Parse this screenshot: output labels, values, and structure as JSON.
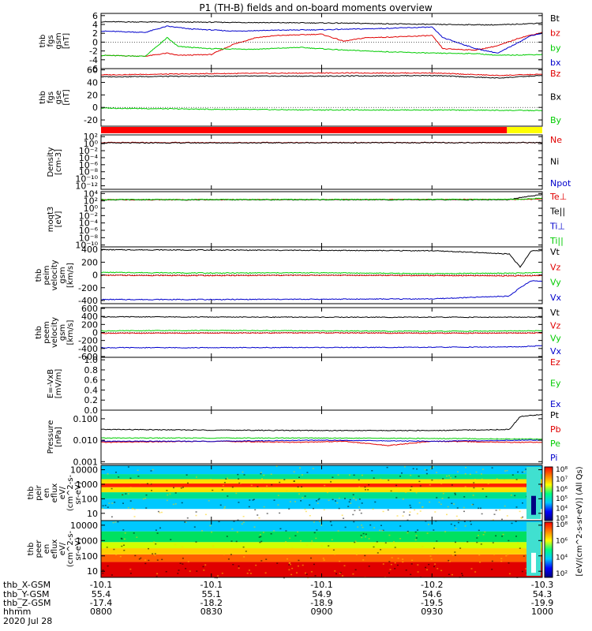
{
  "title": "P1 (TH-B) fields and on-board moments overview",
  "colors": {
    "black": "#000000",
    "red": "#e00000",
    "green": "#00cc00",
    "blue": "#0000cc",
    "yellow": "#ffff00",
    "bar_red": "#ff0000"
  },
  "time_axis": {
    "ticks": [
      {
        "hhmm": "0800",
        "x_gsm": "-10.1",
        "y_gsm": "55.4",
        "z_gsm": "-17.4"
      },
      {
        "hhmm": "0830",
        "x_gsm": "-10.1",
        "y_gsm": "55.1",
        "z_gsm": "-18.2"
      },
      {
        "hhmm": "0900",
        "x_gsm": "-10.1",
        "y_gsm": "54.9",
        "z_gsm": "-18.9"
      },
      {
        "hhmm": "0930",
        "x_gsm": "-10.2",
        "y_gsm": "54.6",
        "z_gsm": "-19.5"
      },
      {
        "hhmm": "1000",
        "x_gsm": "-10.3",
        "y_gsm": "54.3",
        "z_gsm": "-19.9"
      }
    ],
    "row_labels": [
      "thb_X-GSM",
      "thb_Y-GSM",
      "thb_Z-GSM",
      "hhmm"
    ],
    "date": "2020 Jul 28"
  },
  "chart_data": [
    {
      "type": "line",
      "ylabel": [
        "thb",
        "fgs",
        "gsm",
        "[nT]"
      ],
      "ylim": [
        -6,
        6.5
      ],
      "ticks": [
        "6",
        "4",
        "2",
        "0",
        "-2",
        "-4",
        "-6"
      ],
      "tick_values": [
        6,
        4,
        2,
        0,
        -2,
        -4,
        -6
      ],
      "legend": [
        {
          "name": "Bt",
          "color": "#000000"
        },
        {
          "name": "bz",
          "color": "#e00000"
        },
        {
          "name": "by",
          "color": "#00cc00"
        },
        {
          "name": "bx",
          "color": "#0000cc"
        }
      ],
      "series": [
        {
          "name": "Bt",
          "color": "#000000",
          "x": [
            0,
            0.5,
            0.8,
            1.1,
            1.5,
            1.8,
            1.95,
            2.0
          ],
          "y": [
            4.6,
            4.5,
            4.4,
            4.3,
            4.0,
            3.9,
            4.2,
            4.4
          ]
        },
        {
          "name": "bz",
          "color": "#e00000",
          "x": [
            0,
            0.2,
            0.3,
            0.35,
            0.5,
            0.6,
            0.7,
            0.8,
            1.0,
            1.1,
            1.2,
            1.35,
            1.5,
            1.55,
            1.7,
            1.8,
            1.9,
            2.0
          ],
          "y": [
            -3,
            -3.2,
            -2.5,
            -3,
            -2.8,
            -0.5,
            1.0,
            1.5,
            1.8,
            0.2,
            1.0,
            1.2,
            1.5,
            -1.5,
            -1.8,
            -0.8,
            1.0,
            2.2
          ]
        },
        {
          "name": "by",
          "color": "#00cc00",
          "x": [
            0,
            0.2,
            0.3,
            0.35,
            0.5,
            0.7,
            0.9,
            1.1,
            1.3,
            1.5,
            1.7,
            1.8,
            2.0
          ],
          "y": [
            -3,
            -3.2,
            1.0,
            -1,
            -1.5,
            -1.6,
            -1.2,
            -1.8,
            -2.2,
            -2.5,
            -2.6,
            -3.0,
            -2.8
          ]
        },
        {
          "name": "bx",
          "color": "#0000cc",
          "x": [
            0,
            0.2,
            0.3,
            0.4,
            0.6,
            0.8,
            1.0,
            1.2,
            1.5,
            1.55,
            1.7,
            1.8,
            1.95,
            2.0
          ],
          "y": [
            2.5,
            2.2,
            3.6,
            3.0,
            2.5,
            2.7,
            2.8,
            3.0,
            3.4,
            1.0,
            -1.5,
            -2.5,
            1.5,
            2.0
          ]
        }
      ]
    },
    {
      "type": "line",
      "ylabel": [
        "thb",
        "fgs",
        "gse",
        "[nT]"
      ],
      "ylim": [
        -30,
        62
      ],
      "ticks": [
        "60",
        "40",
        "20",
        "0",
        "-20"
      ],
      "tick_values": [
        60,
        40,
        20,
        0,
        -20
      ],
      "legend": [
        {
          "name": "Bz",
          "color": "#e00000"
        },
        {
          "name": "Bx",
          "color": "#000000"
        },
        {
          "name": "By",
          "color": "#00cc00"
        }
      ],
      "series": [
        {
          "name": "Bz",
          "color": "#e00000",
          "x": [
            0,
            0.5,
            1.0,
            1.5,
            1.8,
            2.0
          ],
          "y": [
            52,
            54,
            55,
            55,
            51,
            53
          ]
        },
        {
          "name": "Bx",
          "color": "#000000",
          "x": [
            0,
            0.5,
            1.0,
            1.5,
            1.8,
            2.0
          ],
          "y": [
            49,
            50,
            50,
            51,
            47,
            51
          ]
        },
        {
          "name": "By",
          "color": "#00cc00",
          "x": [
            0,
            0.5,
            1.0,
            1.5,
            2.0
          ],
          "y": [
            -1,
            -3,
            -4,
            -4,
            -5
          ]
        }
      ]
    },
    {
      "type": "bar",
      "mode_bar": [
        {
          "from": 0,
          "to": 1.84,
          "color": "#ff0000"
        },
        {
          "from": 1.84,
          "to": 2.0,
          "color": "#ffff00"
        }
      ]
    },
    {
      "type": "line",
      "log": true,
      "ylabel": [
        "Density",
        "[cm-3]"
      ],
      "ticks": [
        "10²",
        "10⁰",
        "10⁻²",
        "10⁻⁴",
        "10⁻⁶",
        "10⁻⁸",
        "10⁻¹⁰",
        "10⁻¹²"
      ],
      "tick_values": [
        2,
        0,
        -2,
        -4,
        -6,
        -8,
        -10,
        -12
      ],
      "ylim": [
        -13,
        2.5
      ],
      "legend": [
        {
          "name": "Ne",
          "color": "#e00000"
        },
        {
          "name": "Ni",
          "color": "#000000"
        },
        {
          "name": "Npot",
          "color": "#0000cc"
        }
      ],
      "series": [
        {
          "name": "Ne",
          "color": "#e00000",
          "x": [
            0,
            2.0
          ],
          "y": [
            0.3,
            0.3
          ]
        },
        {
          "name": "Ni",
          "color": "#000000",
          "x": [
            0,
            2.0
          ],
          "y": [
            0.2,
            0.3
          ]
        }
      ]
    },
    {
      "type": "line",
      "log": true,
      "ylabel": [
        "moqt3",
        "[eV]"
      ],
      "ticks": [
        "10⁴",
        "10²",
        "10⁰",
        "10⁻²",
        "10⁻⁴",
        "10⁻⁶",
        "10⁻⁸",
        "10⁻¹⁰"
      ],
      "tick_values": [
        4,
        2,
        0,
        -2,
        -4,
        -6,
        -8,
        -10
      ],
      "ylim": [
        -10.5,
        4.5
      ],
      "legend": [
        {
          "name": "Te⊥",
          "color": "#e00000"
        },
        {
          "name": "Te||",
          "color": "#000000"
        },
        {
          "name": "Ti⊥",
          "color": "#0000cc"
        },
        {
          "name": "Ti||",
          "color": "#00cc00"
        }
      ],
      "series": [
        {
          "name": "Te⊥",
          "color": "#e00000",
          "x": [
            0,
            1.9,
            2.0
          ],
          "y": [
            2.3,
            2.4,
            2.5
          ]
        },
        {
          "name": "Te||",
          "color": "#000000",
          "x": [
            0,
            1.85,
            1.9,
            2.0
          ],
          "y": [
            2.3,
            2.3,
            2.9,
            3.7
          ]
        },
        {
          "name": "Ti||",
          "color": "#00cc00",
          "x": [
            0,
            1.9,
            2.0
          ],
          "y": [
            2.35,
            2.4,
            2.7
          ]
        }
      ]
    },
    {
      "type": "line",
      "ylabel": [
        "thb",
        "peim",
        "velocity",
        "gsm",
        "[km/s]"
      ],
      "ticks": [
        "400",
        "200",
        "0",
        "-200",
        "-400"
      ],
      "tick_values": [
        400,
        200,
        0,
        -200,
        -400
      ],
      "ylim": [
        -450,
        440
      ],
      "legend": [
        {
          "name": "Vt",
          "color": "#000000"
        },
        {
          "name": "Vz",
          "color": "#e00000"
        },
        {
          "name": "Vy",
          "color": "#00cc00"
        },
        {
          "name": "Vx",
          "color": "#0000cc"
        }
      ],
      "series": [
        {
          "name": "Vt",
          "color": "#000000",
          "x": [
            0,
            0.5,
            1.0,
            1.5,
            1.85,
            1.9,
            1.95,
            2.0
          ],
          "y": [
            395,
            390,
            385,
            380,
            330,
            120,
            380,
            380
          ]
        },
        {
          "name": "Vz",
          "color": "#e00000",
          "x": [
            0,
            0.5,
            1.0,
            1.5,
            1.9,
            2.0
          ],
          "y": [
            -5,
            -10,
            -5,
            -10,
            -15,
            -10
          ]
        },
        {
          "name": "Vy",
          "color": "#00cc00",
          "x": [
            0,
            0.5,
            1.0,
            1.5,
            1.9,
            2.0
          ],
          "y": [
            40,
            30,
            35,
            20,
            30,
            40
          ]
        },
        {
          "name": "Vx",
          "color": "#0000cc",
          "x": [
            0,
            0.5,
            1.0,
            1.5,
            1.85,
            1.9,
            1.95,
            2.0
          ],
          "y": [
            -385,
            -385,
            -380,
            -375,
            -330,
            -200,
            -90,
            -100
          ]
        }
      ]
    },
    {
      "type": "line",
      "ylabel": [
        "thb",
        "peem",
        "velocity",
        "gsm",
        "[km/s]"
      ],
      "ticks": [
        "600",
        "400",
        "200",
        "0",
        "-200",
        "-400",
        "-600"
      ],
      "tick_values": [
        600,
        400,
        200,
        0,
        -200,
        -400,
        -600
      ],
      "ylim": [
        -620,
        620
      ],
      "legend": [
        {
          "name": "Vt",
          "color": "#000000"
        },
        {
          "name": "Vz",
          "color": "#e00000"
        },
        {
          "name": "Vy",
          "color": "#00cc00"
        },
        {
          "name": "Vx",
          "color": "#0000cc"
        }
      ],
      "series": [
        {
          "name": "Vt",
          "color": "#000000",
          "x": [
            0,
            0.5,
            1.0,
            1.5,
            1.9,
            2.0
          ],
          "y": [
            390,
            385,
            380,
            380,
            380,
            380
          ]
        },
        {
          "name": "Vz",
          "color": "#e00000",
          "x": [
            0,
            0.5,
            1.0,
            1.5,
            2.0
          ],
          "y": [
            -20,
            -15,
            -10,
            -20,
            -15
          ]
        },
        {
          "name": "Vy",
          "color": "#00cc00",
          "x": [
            0,
            0.5,
            1.0,
            1.5,
            2.0
          ],
          "y": [
            40,
            50,
            40,
            30,
            40
          ]
        },
        {
          "name": "Vx",
          "color": "#0000cc",
          "x": [
            0,
            0.5,
            1.0,
            1.5,
            1.9,
            2.0
          ],
          "y": [
            -380,
            -380,
            -375,
            -370,
            -360,
            -330
          ]
        }
      ]
    },
    {
      "type": "line",
      "ylabel": [
        "E=-VxB",
        "[mV/m]"
      ],
      "ticks": [
        "1.0",
        "0.8",
        "0.6",
        "0.4",
        "0.2",
        "0.0"
      ],
      "tick_values": [
        1.0,
        0.8,
        0.6,
        0.4,
        0.2,
        0.0
      ],
      "ylim": [
        0,
        1.05
      ],
      "legend": [
        {
          "name": "Ez",
          "color": "#e00000"
        },
        {
          "name": "Ey",
          "color": "#00cc00"
        },
        {
          "name": "Ex",
          "color": "#0000cc"
        }
      ],
      "series": []
    },
    {
      "type": "line",
      "log": true,
      "ylabel": [
        "Pressure",
        "[nPa]"
      ],
      "ticks": [
        "0.100",
        "0.010",
        "0.001"
      ],
      "tick_values": [
        -1,
        -2,
        -3
      ],
      "ylim": [
        -3.1,
        -0.6
      ],
      "legend": [
        {
          "name": "Pt",
          "color": "#000000"
        },
        {
          "name": "Pb",
          "color": "#e00000"
        },
        {
          "name": "Pe",
          "color": "#00cc00"
        },
        {
          "name": "Pi",
          "color": "#0000cc"
        }
      ],
      "series": [
        {
          "name": "Pt",
          "color": "#000000",
          "x": [
            0,
            0.5,
            1.0,
            1.5,
            1.85,
            1.9,
            2.0
          ],
          "y": [
            -1.5,
            -1.53,
            -1.55,
            -1.55,
            -1.5,
            -0.9,
            -0.8
          ]
        },
        {
          "name": "Pb",
          "color": "#e00000",
          "x": [
            0,
            0.5,
            0.9,
            1.1,
            1.3,
            1.5,
            1.9,
            2.0
          ],
          "y": [
            -2.1,
            -2.05,
            -2.1,
            -2.05,
            -2.25,
            -2.05,
            -2.1,
            -2.1
          ]
        },
        {
          "name": "Pe",
          "color": "#00cc00",
          "x": [
            0,
            0.5,
            1.0,
            1.5,
            2.0
          ],
          "y": [
            -1.9,
            -1.9,
            -1.9,
            -1.92,
            -1.95
          ]
        },
        {
          "name": "Pi",
          "color": "#0000cc",
          "x": [
            0,
            0.5,
            1.0,
            1.5,
            1.9,
            2.0
          ],
          "y": [
            -2.05,
            -2.05,
            -2.0,
            -2.05,
            -2.0,
            -2.0
          ]
        }
      ]
    },
    {
      "type": "heatmap",
      "ylabel": [
        "thb",
        "peir",
        "en",
        "eflux",
        "eV/",
        "(cm^2-s-",
        "sr-eV)"
      ],
      "ticks": [
        "10000",
        "1000",
        "100",
        "10"
      ],
      "tick_values": [
        4,
        3,
        2,
        1
      ],
      "ylim": [
        0.5,
        4.3
      ],
      "bands": [
        {
          "from": 0.5,
          "to": 1.3,
          "color": "#ffffff"
        },
        {
          "from": 1.3,
          "to": 2.0,
          "color": "#00c8ff"
        },
        {
          "from": 2.0,
          "to": 2.45,
          "color": "#00e090"
        },
        {
          "from": 2.45,
          "to": 2.8,
          "color": "#ffe000"
        },
        {
          "from": 2.8,
          "to": 3.05,
          "color": "#ff2000"
        },
        {
          "from": 3.05,
          "to": 3.35,
          "color": "#ffe000"
        },
        {
          "from": 3.35,
          "to": 3.7,
          "color": "#00e090"
        },
        {
          "from": 3.7,
          "to": 4.3,
          "color": "#00c8ff"
        }
      ]
    },
    {
      "type": "heatmap",
      "ylabel": [
        "thb",
        "peer",
        "en",
        "eflux",
        "eV/",
        "(cm^2-s-",
        "sr-eV)"
      ],
      "ticks": [
        "10000",
        "1000",
        "100",
        "10"
      ],
      "tick_values": [
        4,
        3,
        2,
        1
      ],
      "ylim": [
        0.6,
        4.3
      ],
      "bands": [
        {
          "from": 0.6,
          "to": 1.6,
          "color": "#e00000"
        },
        {
          "from": 1.6,
          "to": 2.1,
          "color": "#ff6000"
        },
        {
          "from": 2.1,
          "to": 2.5,
          "color": "#ffd000"
        },
        {
          "from": 2.5,
          "to": 2.9,
          "color": "#d0ff00"
        },
        {
          "from": 2.9,
          "to": 3.6,
          "color": "#00e060"
        },
        {
          "from": 3.6,
          "to": 4.3,
          "color": "#00c8ff"
        }
      ]
    }
  ],
  "colorbar": {
    "label": "[eV/(cm^2-s-sr-eV)] (All Qs)",
    "ticks_upper": [
      "10⁸",
      "10⁷",
      "10⁶",
      "10⁵",
      "10⁴",
      "10³"
    ],
    "ticks_lower": [
      "10⁸",
      "10⁶",
      "10⁴",
      "10²"
    ],
    "gradient": [
      "#ff0000",
      "#ff8000",
      "#ffff00",
      "#00ff80",
      "#00c8ff",
      "#0000ff",
      "#000080"
    ]
  }
}
